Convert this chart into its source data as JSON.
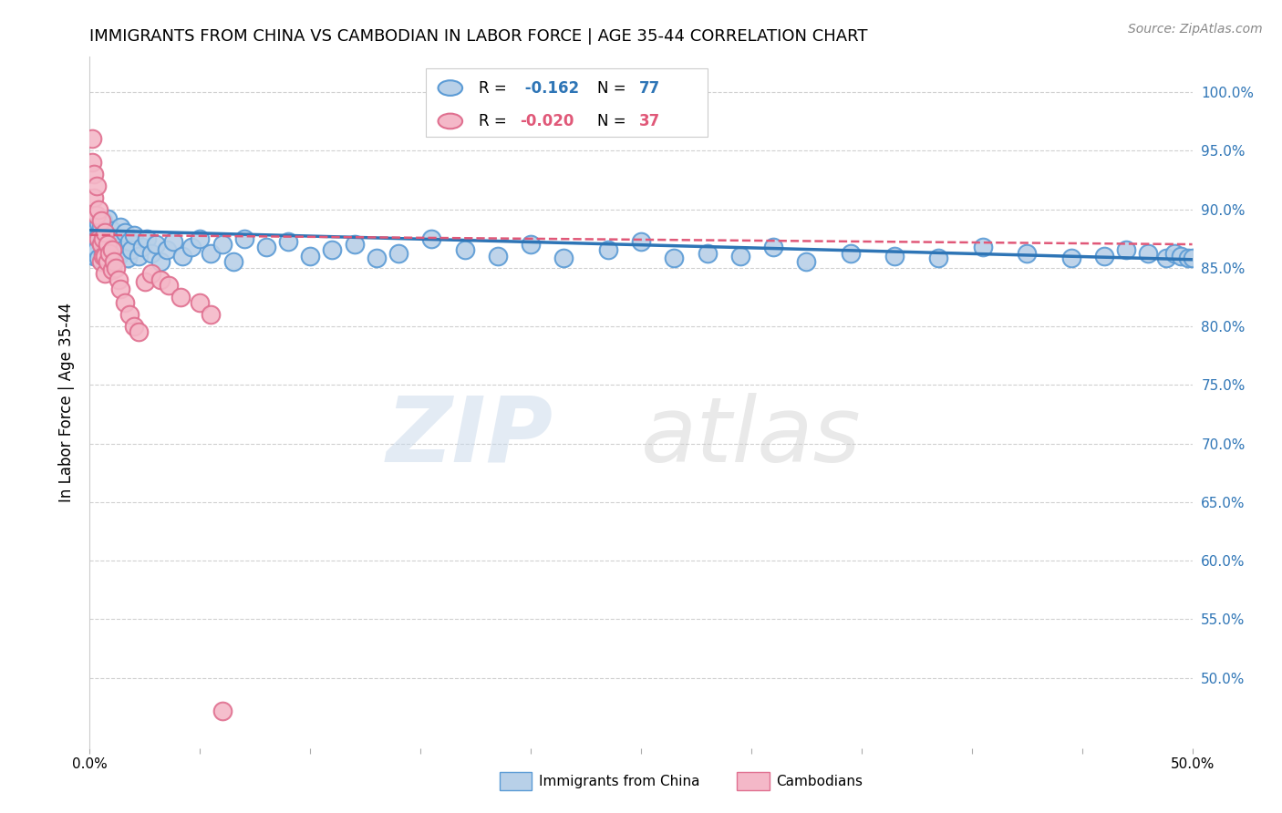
{
  "title": "IMMIGRANTS FROM CHINA VS CAMBODIAN IN LABOR FORCE | AGE 35-44 CORRELATION CHART",
  "source": "Source: ZipAtlas.com",
  "ylabel": "In Labor Force | Age 35-44",
  "yticks": [
    0.5,
    0.55,
    0.6,
    0.65,
    0.7,
    0.75,
    0.8,
    0.85,
    0.9,
    0.95,
    1.0
  ],
  "ytick_labels": [
    "50.0%",
    "55.0%",
    "60.0%",
    "65.0%",
    "70.0%",
    "75.0%",
    "80.0%",
    "85.0%",
    "90.0%",
    "95.0%",
    "100.0%"
  ],
  "xlim": [
    0.0,
    0.5
  ],
  "ylim": [
    0.44,
    1.03
  ],
  "legend_blue_label": "Immigrants from China",
  "legend_pink_label": "Cambodians",
  "blue_R": "-0.162",
  "blue_N": "77",
  "pink_R": "-0.020",
  "pink_N": "37",
  "blue_fill": "#b8d0e8",
  "blue_edge": "#5b9bd5",
  "blue_line": "#2e75b6",
  "pink_fill": "#f4b8c8",
  "pink_edge": "#e07090",
  "pink_line": "#e05878",
  "bg_color": "#ffffff",
  "grid_color": "#d0d0d0",
  "blue_scatter_x": [
    0.001,
    0.002,
    0.002,
    0.003,
    0.003,
    0.004,
    0.004,
    0.005,
    0.005,
    0.006,
    0.006,
    0.007,
    0.007,
    0.008,
    0.008,
    0.009,
    0.009,
    0.01,
    0.01,
    0.011,
    0.012,
    0.013,
    0.014,
    0.015,
    0.016,
    0.017,
    0.018,
    0.019,
    0.02,
    0.022,
    0.024,
    0.026,
    0.028,
    0.03,
    0.032,
    0.035,
    0.038,
    0.042,
    0.046,
    0.05,
    0.055,
    0.06,
    0.065,
    0.07,
    0.08,
    0.09,
    0.1,
    0.11,
    0.12,
    0.13,
    0.14,
    0.155,
    0.17,
    0.185,
    0.2,
    0.215,
    0.235,
    0.25,
    0.265,
    0.28,
    0.295,
    0.31,
    0.325,
    0.345,
    0.365,
    0.385,
    0.405,
    0.425,
    0.445,
    0.46,
    0.47,
    0.48,
    0.488,
    0.492,
    0.495,
    0.498,
    0.5
  ],
  "blue_scatter_y": [
    0.87,
    0.88,
    0.86,
    0.875,
    0.865,
    0.888,
    0.858,
    0.885,
    0.872,
    0.89,
    0.862,
    0.875,
    0.868,
    0.892,
    0.855,
    0.878,
    0.865,
    0.882,
    0.858,
    0.87,
    0.875,
    0.86,
    0.885,
    0.865,
    0.88,
    0.858,
    0.872,
    0.865,
    0.878,
    0.86,
    0.868,
    0.875,
    0.862,
    0.87,
    0.855,
    0.865,
    0.872,
    0.86,
    0.868,
    0.875,
    0.862,
    0.87,
    0.855,
    0.875,
    0.868,
    0.872,
    0.86,
    0.865,
    0.87,
    0.858,
    0.862,
    0.875,
    0.865,
    0.86,
    0.87,
    0.858,
    0.865,
    0.872,
    0.858,
    0.862,
    0.86,
    0.868,
    0.855,
    0.862,
    0.86,
    0.858,
    0.868,
    0.862,
    0.858,
    0.86,
    0.865,
    0.862,
    0.858,
    0.862,
    0.86,
    0.858,
    0.858
  ],
  "pink_scatter_x": [
    0.001,
    0.001,
    0.002,
    0.002,
    0.003,
    0.003,
    0.004,
    0.004,
    0.005,
    0.005,
    0.005,
    0.006,
    0.006,
    0.007,
    0.007,
    0.007,
    0.008,
    0.008,
    0.009,
    0.01,
    0.01,
    0.011,
    0.012,
    0.013,
    0.014,
    0.016,
    0.018,
    0.02,
    0.022,
    0.025,
    0.028,
    0.032,
    0.036,
    0.041,
    0.05,
    0.055,
    0.06
  ],
  "pink_scatter_y": [
    0.96,
    0.94,
    0.93,
    0.91,
    0.92,
    0.895,
    0.9,
    0.875,
    0.89,
    0.87,
    0.855,
    0.875,
    0.86,
    0.88,
    0.86,
    0.845,
    0.87,
    0.855,
    0.862,
    0.865,
    0.848,
    0.855,
    0.85,
    0.84,
    0.832,
    0.82,
    0.81,
    0.8,
    0.795,
    0.838,
    0.845,
    0.84,
    0.835,
    0.825,
    0.82,
    0.81,
    0.472
  ]
}
